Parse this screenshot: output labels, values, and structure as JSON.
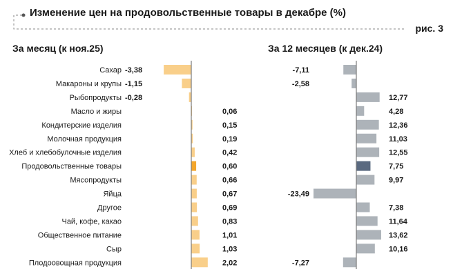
{
  "title": "Изменение цен на продовольственные товары в декабре (%)",
  "figure_label": "рис. 3",
  "colors": {
    "left_bar": "#f9cf8a",
    "left_highlight": "#f3a62c",
    "right_bar": "#adb3b9",
    "right_highlight": "#5a6a80",
    "axis": "#7a7a7a",
    "deco": "#888888"
  },
  "chart_data": [
    {
      "type": "bar",
      "orientation": "horizontal",
      "title": "За месяц (к ноя.25)",
      "categories": [
        "Сахар",
        "Макароны и крупы",
        "Рыбопродукты",
        "Масло и жиры",
        "Кондитерские изделия",
        "Молочная продукция",
        "Хлеб и хлебобулочные изделия",
        "Продовольственные товары",
        "Мясопродукты",
        "Яйца",
        "Другое",
        "Чай, кофе, какао",
        "Общественное питание",
        "Сыр",
        "Плодоовощная продукция"
      ],
      "values": [
        -3.38,
        -1.15,
        -0.28,
        0.06,
        0.15,
        0.19,
        0.42,
        0.6,
        0.66,
        0.67,
        0.69,
        0.83,
        1.01,
        1.03,
        2.02
      ],
      "labels": [
        "-3,38",
        "-1,15",
        "-0,28",
        "0,06",
        "0,15",
        "0,19",
        "0,42",
        "0,60",
        "0,66",
        "0,67",
        "0,69",
        "0,83",
        "1,01",
        "1,03",
        "2,02"
      ],
      "highlight": "Продовольственные товары",
      "xlim": [
        -3.38,
        2.02
      ]
    },
    {
      "type": "bar",
      "orientation": "horizontal",
      "title": "За 12 месяцев (к дек.24)",
      "categories": [
        "Сахар",
        "Макароны и крупы",
        "Рыбопродукты",
        "Масло и жиры",
        "Кондитерские изделия",
        "Молочная продукция",
        "Хлеб и хлебобулочные изделия",
        "Продовольственные товары",
        "Мясопродукты",
        "Яйца",
        "Другое",
        "Чай, кофе, какао",
        "Общественное питание",
        "Сыр",
        "Плодоовощная продукция"
      ],
      "values": [
        -7.11,
        -2.58,
        12.77,
        4.28,
        12.36,
        11.03,
        12.55,
        7.75,
        9.97,
        -23.49,
        7.38,
        11.64,
        13.62,
        10.16,
        -7.27
      ],
      "labels": [
        "-7,11",
        "-2,58",
        "12,77",
        "4,28",
        "12,36",
        "11,03",
        "12,55",
        "7,75",
        "9,97",
        "-23,49",
        "7,38",
        "11,64",
        "13,62",
        "10,16",
        "-7,27"
      ],
      "highlight": "Продовольственные товары",
      "xlim": [
        -23.49,
        13.62
      ]
    }
  ]
}
